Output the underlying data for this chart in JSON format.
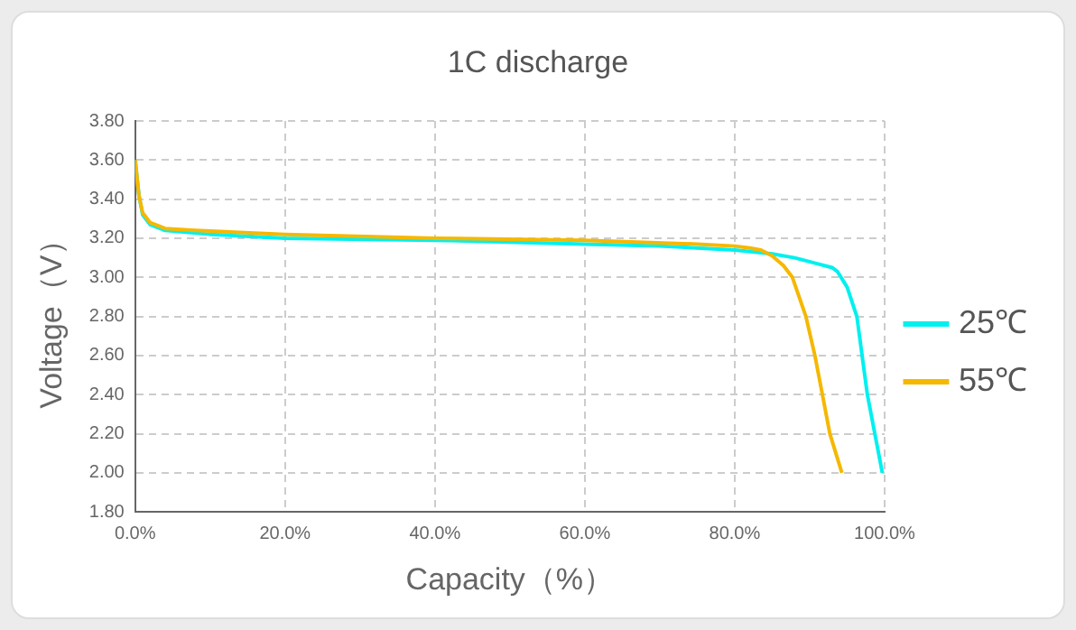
{
  "chart_data": {
    "type": "line",
    "title": "1C discharge",
    "xlabel": "Capacity（%）",
    "ylabel": "Voltage（V）",
    "xlim": [
      0,
      100
    ],
    "xticks": [
      {
        "value": 0,
        "label": "0.0%"
      },
      {
        "value": 20,
        "label": "20.0%"
      },
      {
        "value": 40,
        "label": "40.0%"
      },
      {
        "value": 60,
        "label": "60.0%"
      },
      {
        "value": 80,
        "label": "80.0%"
      },
      {
        "value": 100,
        "label": "100.0%"
      }
    ],
    "ylim": [
      1.8,
      3.8
    ],
    "yticks": [
      {
        "value": 1.8,
        "label": "1.80"
      },
      {
        "value": 2,
        "label": "2.00"
      },
      {
        "value": 2.2,
        "label": "2.20"
      },
      {
        "value": 2.4,
        "label": "2.40"
      },
      {
        "value": 2.6,
        "label": "2.60"
      },
      {
        "value": 2.8,
        "label": "2.80"
      },
      {
        "value": 3,
        "label": "3.00"
      },
      {
        "value": 3.2,
        "label": "3.20"
      },
      {
        "value": 3.4,
        "label": "3.40"
      },
      {
        "value": 3.6,
        "label": "3.60"
      },
      {
        "value": 3.8,
        "label": "3.80"
      }
    ],
    "grid": true,
    "legend": "right",
    "marker": "none",
    "line_style": "solid",
    "series": [
      {
        "name": "25℃",
        "color": "#00f0f0",
        "x": [
          0,
          0.5,
          1,
          2,
          4,
          10,
          20,
          40,
          60,
          70,
          80,
          85,
          88,
          91,
          93,
          93.7,
          95,
          96.3,
          97,
          97.7,
          98.7,
          99.7
        ],
        "values": [
          3.6,
          3.42,
          3.32,
          3.27,
          3.24,
          3.22,
          3.2,
          3.19,
          3.17,
          3.16,
          3.14,
          3.12,
          3.1,
          3.07,
          3.05,
          3.03,
          2.95,
          2.8,
          2.6,
          2.4,
          2.2,
          2.0
        ]
      },
      {
        "name": "55℃",
        "color": "#f5b800",
        "x": [
          0,
          0.5,
          1,
          2,
          4,
          8,
          20,
          40,
          60,
          75,
          80,
          82,
          83.5,
          85,
          86.5,
          87.7,
          89.5,
          90.7,
          91.7,
          92.7,
          94.3
        ],
        "values": [
          3.6,
          3.42,
          3.33,
          3.28,
          3.25,
          3.24,
          3.22,
          3.2,
          3.19,
          3.17,
          3.16,
          3.15,
          3.14,
          3.11,
          3.06,
          3.0,
          2.8,
          2.6,
          2.4,
          2.2,
          2.0
        ]
      }
    ]
  }
}
